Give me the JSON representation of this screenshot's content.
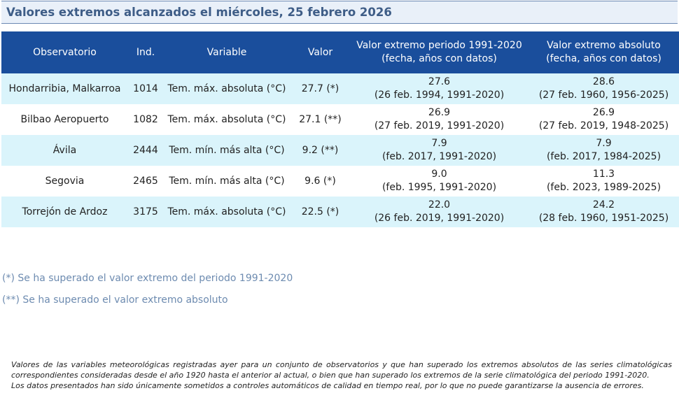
{
  "title": "Valores extremos alcanzados el miércoles, 25 febrero 2026",
  "table": {
    "headers": {
      "observatorio": "Observatorio",
      "ind": "Ind.",
      "variable": "Variable",
      "valor": "Valor",
      "periodo_1": "Valor extremo periodo 1991-2020",
      "periodo_2": "(fecha, años con datos)",
      "absoluto_1": "Valor extremo absoluto",
      "absoluto_2": "(fecha, años con datos)"
    },
    "rows": [
      {
        "observatorio": "Hondarribia, Malkarroa",
        "ind": "1014",
        "variable": "Tem. máx. absoluta (°C)",
        "valor": "27.7 (*)",
        "periodo_valor": "27.6",
        "periodo_detalle": "(26 feb. 1994, 1991-2020)",
        "absoluto_valor": "28.6",
        "absoluto_detalle": "(27 feb. 1960, 1956-2025)"
      },
      {
        "observatorio": "Bilbao Aeropuerto",
        "ind": "1082",
        "variable": "Tem. máx. absoluta (°C)",
        "valor": "27.1 (**)",
        "periodo_valor": "26.9",
        "periodo_detalle": "(27 feb. 2019, 1991-2020)",
        "absoluto_valor": "26.9",
        "absoluto_detalle": "(27 feb. 2019, 1948-2025)"
      },
      {
        "observatorio": "Ávila",
        "ind": "2444",
        "variable": "Tem. mín. más alta (°C)",
        "valor": "9.2 (**)",
        "periodo_valor": "7.9",
        "periodo_detalle": "(feb. 2017, 1991-2020)",
        "absoluto_valor": "7.9",
        "absoluto_detalle": "(feb. 2017, 1984-2025)"
      },
      {
        "observatorio": "Segovia",
        "ind": "2465",
        "variable": "Tem. mín. más alta (°C)",
        "valor": "9.6 (*)",
        "periodo_valor": "9.0",
        "periodo_detalle": "(feb. 1995, 1991-2020)",
        "absoluto_valor": "11.3",
        "absoluto_detalle": "(feb. 2023, 1989-2025)"
      },
      {
        "observatorio": "Torrejón de Ardoz",
        "ind": "3175",
        "variable": "Tem. máx. absoluta (°C)",
        "valor": "22.5 (*)",
        "periodo_valor": "22.0",
        "periodo_detalle": "(26 feb. 2019, 1991-2020)",
        "absoluto_valor": "24.2",
        "absoluto_detalle": "(28 feb. 1960, 1951-2025)"
      }
    ]
  },
  "notes": {
    "single": "(*) Se ha superado el valor extremo del periodo 1991-2020",
    "double": "(**) Se ha superado el valor extremo absoluto"
  },
  "disclaimer": {
    "p1": "Valores de las variables meteorológicas registradas ayer para un conjunto de observatorios y que han superado los extremos absolutos de las series climatológicas correspondientes consideradas desde el año 1920 hasta el anterior al actual, o bien que han superado los extremos de la serie climatológica del periodo 1991-2020.",
    "p2": "Los datos presentados han sido únicamente sometidos a controles automáticos de calidad en tiempo real, por lo que no puede garantizarse la ausencia de errores."
  },
  "colors": {
    "header_bg": "#1a4e9c",
    "row_alt": "#daf4fb",
    "title_text": "#3e5d87",
    "notes_text": "#6d8bb0"
  }
}
